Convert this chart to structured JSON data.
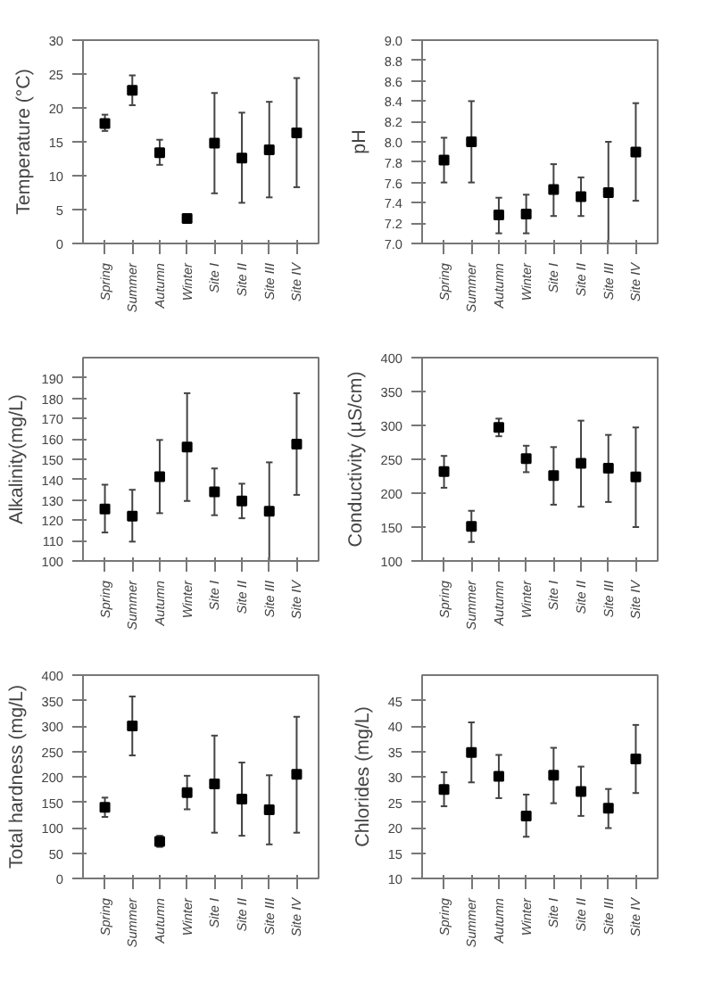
{
  "chart_data": [
    {
      "type": "scatter",
      "ylabel": "Temperature (°C)",
      "categories": [
        "Spring",
        "Summer",
        "Autumn",
        "Winter",
        "Site I",
        "Site II",
        "Site III",
        "Site IV"
      ],
      "values": [
        17.7,
        22.6,
        13.4,
        3.7,
        14.8,
        12.6,
        13.8,
        16.3
      ],
      "errors": [
        [
          16.6,
          19
        ],
        [
          20.4,
          24.8
        ],
        [
          11.6,
          15.3
        ],
        [
          3.2,
          4.3
        ],
        [
          7.4,
          22.2
        ],
        [
          6,
          19.3
        ],
        [
          6.8,
          20.9
        ],
        [
          8.3,
          24.4
        ]
      ],
      "color": "#000000",
      "marker": "square",
      "grid": false,
      "ylim": [
        0,
        30
      ],
      "yticks": [
        0,
        5,
        10,
        15,
        20,
        25,
        30
      ]
    },
    {
      "type": "scatter",
      "ylabel": "pH",
      "categories": [
        "Spring",
        "Summer",
        "Autumn",
        "Winter",
        "Site I",
        "Site II",
        "Site III",
        "Site IV"
      ],
      "values": [
        7.82,
        8.0,
        7.28,
        7.29,
        7.53,
        7.46,
        7.5,
        7.9
      ],
      "errors": [
        [
          7.6,
          8.04
        ],
        [
          7.6,
          8.4
        ],
        [
          7.1,
          7.45
        ],
        [
          7.1,
          7.48
        ],
        [
          7.27,
          7.78
        ],
        [
          7.27,
          7.65
        ],
        [
          7.0,
          8.0
        ],
        [
          7.42,
          8.38
        ]
      ],
      "color": "#000000",
      "marker": "square",
      "grid": false,
      "ylim": [
        7.0,
        9.0
      ],
      "yticks": [
        {
          "value": 7.0,
          "label": "7.0"
        },
        7.2,
        7.4,
        7.6,
        7.8,
        {
          "value": 8.0,
          "label": "8.0"
        },
        8.2,
        8.4,
        8.6,
        8.8,
        {
          "value": 9.0,
          "label": "9.0"
        }
      ]
    },
    {
      "type": "scatter",
      "ylabel": "Alkalinity(mg/L)",
      "categories": [
        "Spring",
        "Summer",
        "Autumn",
        "Winter",
        "Site I",
        "Site II",
        "Site III",
        "Site IV"
      ],
      "values": [
        125.5,
        122,
        141.5,
        156,
        134,
        129.5,
        124.5,
        157.5
      ],
      "errors": [
        [
          114,
          137.5
        ],
        [
          109.5,
          135
        ],
        [
          123.5,
          159.5
        ],
        [
          129.5,
          182.5
        ],
        [
          122.5,
          145.5
        ],
        [
          121,
          138
        ],
        [
          100,
          148.5
        ],
        [
          132.5,
          182.5
        ]
      ],
      "color": "#000000",
      "marker": "square",
      "grid": false,
      "ylim": [
        100,
        200
      ],
      "yticks": [
        100,
        110,
        120,
        130,
        140,
        150,
        160,
        170,
        180,
        190
      ]
    },
    {
      "type": "scatter",
      "ylabel": "Conductivity (µS/cm)",
      "categories": [
        "Spring",
        "Summer",
        "Autumn",
        "Winter",
        "Site I",
        "Site II",
        "Site III",
        "Site IV"
      ],
      "values": [
        232,
        151,
        297,
        251,
        226,
        244,
        237,
        224
      ],
      "errors": [
        [
          208,
          255
        ],
        [
          128,
          174
        ],
        [
          284,
          310
        ],
        [
          231,
          270
        ],
        [
          183,
          268
        ],
        [
          180,
          307
        ],
        [
          187,
          286
        ],
        [
          150,
          297
        ]
      ],
      "color": "#000000",
      "marker": "square",
      "grid": false,
      "ylim": [
        100,
        400
      ],
      "yticks": [
        100,
        150,
        200,
        250,
        300,
        350,
        400
      ]
    },
    {
      "type": "scatter",
      "ylabel": "Total hardness (mg/L)",
      "categories": [
        "Spring",
        "Summer",
        "Autumn",
        "Winter",
        "Site I",
        "Site II",
        "Site III",
        "Site IV"
      ],
      "values": [
        140,
        300,
        73,
        169,
        186,
        156,
        135,
        205
      ],
      "errors": [
        [
          121,
          159
        ],
        [
          242,
          358
        ],
        [
          62,
          84
        ],
        [
          136,
          202
        ],
        [
          90,
          281
        ],
        [
          84,
          228
        ],
        [
          67,
          203
        ],
        [
          90,
          318
        ]
      ],
      "color": "#000000",
      "marker": "square",
      "grid": false,
      "ylim": [
        0,
        400
      ],
      "yticks": [
        0,
        50,
        100,
        150,
        200,
        250,
        300,
        350,
        400
      ]
    },
    {
      "type": "scatter",
      "ylabel": "Chlorides (mg/L)",
      "categories": [
        "Spring",
        "Summer",
        "Autumn",
        "Winter",
        "Site I",
        "Site II",
        "Site III",
        "Site IV"
      ],
      "values": [
        27.5,
        34.8,
        30.1,
        22.3,
        30.3,
        27.1,
        23.8,
        33.5
      ],
      "errors": [
        [
          24.2,
          30.9
        ],
        [
          28.9,
          40.7
        ],
        [
          25.8,
          34.3
        ],
        [
          18.2,
          26.5
        ],
        [
          24.8,
          35.7
        ],
        [
          22.3,
          32
        ],
        [
          19.9,
          27.6
        ],
        [
          26.8,
          40.2
        ]
      ],
      "color": "#000000",
      "marker": "square",
      "grid": false,
      "ylim": [
        10,
        50
      ],
      "yticks": [
        10,
        15,
        20,
        25,
        30,
        35,
        40,
        45
      ]
    }
  ]
}
